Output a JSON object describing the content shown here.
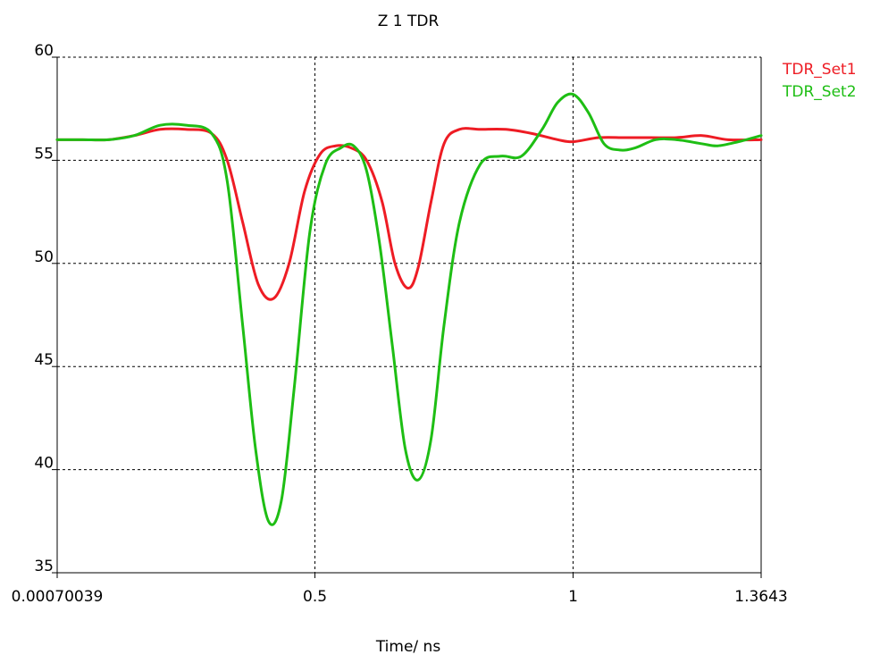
{
  "chart_data": {
    "type": "line",
    "title": "Z 1 TDR",
    "xlabel": "Time/ ns",
    "ylabel": "",
    "xlim": [
      0.00070039,
      1.3643
    ],
    "ylim": [
      35,
      60
    ],
    "x_ticks": [
      {
        "value": 0.00070039,
        "label": "0.00070039"
      },
      {
        "value": 0.5,
        "label": "0.5"
      },
      {
        "value": 1,
        "label": "1"
      },
      {
        "value": 1.3643,
        "label": "1.3643"
      }
    ],
    "y_ticks": [
      {
        "value": 60,
        "label": "60"
      },
      {
        "value": 55,
        "label": "55"
      },
      {
        "value": 50,
        "label": "50"
      },
      {
        "value": 45,
        "label": "45"
      },
      {
        "value": 40,
        "label": "40"
      },
      {
        "value": 35,
        "label": "35"
      }
    ],
    "grid": true,
    "legend_position": "right",
    "series": [
      {
        "name": "TDR_Set1",
        "color": "#ee1c24",
        "points": [
          [
            0.0007,
            56.0
          ],
          [
            0.05,
            56.0
          ],
          [
            0.1,
            56.0
          ],
          [
            0.15,
            56.2
          ],
          [
            0.2,
            56.5
          ],
          [
            0.25,
            56.5
          ],
          [
            0.3,
            56.3
          ],
          [
            0.33,
            55.0
          ],
          [
            0.36,
            52.0
          ],
          [
            0.39,
            49.0
          ],
          [
            0.42,
            48.3
          ],
          [
            0.45,
            50.0
          ],
          [
            0.48,
            53.5
          ],
          [
            0.51,
            55.3
          ],
          [
            0.54,
            55.7
          ],
          [
            0.57,
            55.6
          ],
          [
            0.6,
            55.0
          ],
          [
            0.63,
            53.0
          ],
          [
            0.655,
            50.0
          ],
          [
            0.68,
            48.8
          ],
          [
            0.7,
            49.8
          ],
          [
            0.725,
            53.0
          ],
          [
            0.75,
            55.8
          ],
          [
            0.78,
            56.5
          ],
          [
            0.82,
            56.5
          ],
          [
            0.87,
            56.5
          ],
          [
            0.92,
            56.3
          ],
          [
            0.97,
            56.0
          ],
          [
            1.0,
            55.9
          ],
          [
            1.05,
            56.1
          ],
          [
            1.1,
            56.1
          ],
          [
            1.15,
            56.1
          ],
          [
            1.2,
            56.1
          ],
          [
            1.25,
            56.2
          ],
          [
            1.3,
            56.0
          ],
          [
            1.3643,
            56.0
          ]
        ]
      },
      {
        "name": "TDR_Set2",
        "color": "#1ebe14",
        "points": [
          [
            0.0007,
            56.0
          ],
          [
            0.05,
            56.0
          ],
          [
            0.1,
            56.0
          ],
          [
            0.15,
            56.2
          ],
          [
            0.2,
            56.7
          ],
          [
            0.25,
            56.7
          ],
          [
            0.3,
            56.3
          ],
          [
            0.33,
            54.0
          ],
          [
            0.36,
            47.0
          ],
          [
            0.385,
            41.0
          ],
          [
            0.41,
            37.5
          ],
          [
            0.435,
            38.5
          ],
          [
            0.46,
            44.0
          ],
          [
            0.49,
            51.5
          ],
          [
            0.52,
            54.8
          ],
          [
            0.55,
            55.6
          ],
          [
            0.575,
            55.7
          ],
          [
            0.6,
            54.5
          ],
          [
            0.625,
            51.0
          ],
          [
            0.65,
            46.0
          ],
          [
            0.675,
            41.0
          ],
          [
            0.7,
            39.5
          ],
          [
            0.725,
            41.5
          ],
          [
            0.75,
            47.0
          ],
          [
            0.78,
            52.0
          ],
          [
            0.82,
            54.8
          ],
          [
            0.86,
            55.2
          ],
          [
            0.9,
            55.2
          ],
          [
            0.94,
            56.5
          ],
          [
            0.97,
            57.8
          ],
          [
            1.0,
            58.2
          ],
          [
            1.03,
            57.3
          ],
          [
            1.06,
            55.8
          ],
          [
            1.09,
            55.5
          ],
          [
            1.12,
            55.6
          ],
          [
            1.16,
            56.0
          ],
          [
            1.2,
            56.0
          ],
          [
            1.25,
            55.8
          ],
          [
            1.28,
            55.7
          ],
          [
            1.32,
            55.9
          ],
          [
            1.3643,
            56.2
          ]
        ]
      }
    ]
  }
}
